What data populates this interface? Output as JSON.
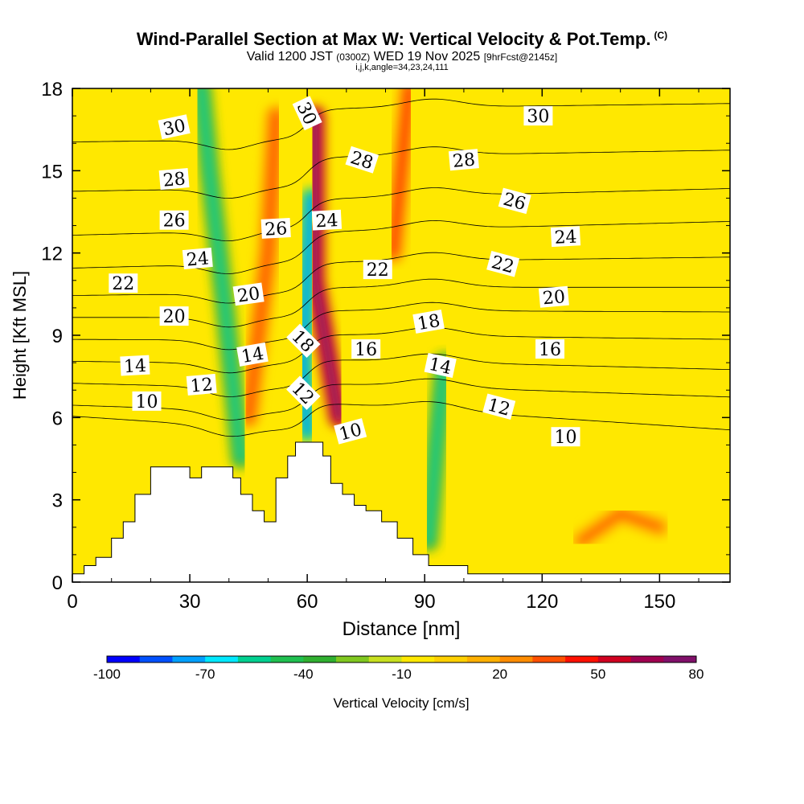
{
  "header": {
    "title": "Wind-Parallel Section at Max W: Vertical Velocity & Pot.Temp.",
    "copyright": "(C)",
    "valid_prefix": "Valid 1200 JST",
    "valid_zulu": "(0300Z)",
    "valid_date": "WED 19 Nov 2025",
    "forecast": "[9hrFcst@2145z]",
    "indices": "i,j,k,angle=34,23,24,111"
  },
  "chart_data": {
    "type": "heatmap",
    "xlabel": "Distance [nm]",
    "ylabel": "Height [Kft MSL]",
    "xlim": [
      0,
      168
    ],
    "ylim": [
      0,
      18
    ],
    "xticks": [
      0,
      30,
      60,
      90,
      120,
      150
    ],
    "yticks": [
      0,
      3,
      6,
      9,
      12,
      15,
      18
    ],
    "colorbar": {
      "label": "Vertical Velocity [cm/s]",
      "min": -100,
      "max": 80,
      "step": 10,
      "tick_values": [
        -100,
        -70,
        -40,
        -10,
        20,
        50,
        80
      ],
      "colors": [
        "#0000ff",
        "#0050ff",
        "#00a0ff",
        "#00e8ff",
        "#00d090",
        "#20c050",
        "#30b030",
        "#80c820",
        "#c8e020",
        "#ffe800",
        "#ffd000",
        "#ffb000",
        "#ff8c00",
        "#ff5000",
        "#ff1000",
        "#d00020",
        "#a00050",
        "#80106a"
      ]
    },
    "background_w_cm_s": 0,
    "terrain_profile": [
      {
        "x": 0,
        "z": 0.3
      },
      {
        "x": 3,
        "z": 0.6
      },
      {
        "x": 6,
        "z": 0.9
      },
      {
        "x": 10,
        "z": 1.6
      },
      {
        "x": 13,
        "z": 2.2
      },
      {
        "x": 16,
        "z": 3.2
      },
      {
        "x": 20,
        "z": 4.2
      },
      {
        "x": 29,
        "z": 4.2
      },
      {
        "x": 30,
        "z": 3.8
      },
      {
        "x": 33,
        "z": 4.2
      },
      {
        "x": 39,
        "z": 4.2
      },
      {
        "x": 41,
        "z": 3.8
      },
      {
        "x": 43,
        "z": 3.2
      },
      {
        "x": 46,
        "z": 2.6
      },
      {
        "x": 49,
        "z": 2.2
      },
      {
        "x": 52,
        "z": 3.8
      },
      {
        "x": 55,
        "z": 4.6
      },
      {
        "x": 57,
        "z": 5.1
      },
      {
        "x": 61,
        "z": 5.1
      },
      {
        "x": 64,
        "z": 4.6
      },
      {
        "x": 66,
        "z": 3.6
      },
      {
        "x": 69,
        "z": 3.2
      },
      {
        "x": 72,
        "z": 2.8
      },
      {
        "x": 75,
        "z": 2.6
      },
      {
        "x": 79,
        "z": 2.2
      },
      {
        "x": 83,
        "z": 1.6
      },
      {
        "x": 87,
        "z": 1.0
      },
      {
        "x": 91,
        "z": 0.6
      },
      {
        "x": 100,
        "z": 0.6
      },
      {
        "x": 101,
        "z": 0.3
      },
      {
        "x": 168,
        "z": 0.3
      }
    ],
    "w_features": [
      {
        "name": "main updraft",
        "x": [
          68,
          65,
          62,
          62,
          62
        ],
        "z": [
          6,
          8.5,
          11,
          14,
          17
        ],
        "w": 55
      },
      {
        "name": "main downdraft",
        "x": [
          60,
          59,
          60,
          61
        ],
        "z": [
          5.5,
          8,
          11,
          14
        ],
        "w": -60
      },
      {
        "name": "downdraft band",
        "x": [
          43,
          39,
          35,
          33
        ],
        "z": [
          4.5,
          10,
          15,
          18
        ],
        "w": -40
      },
      {
        "name": "updraft band",
        "x": [
          45,
          50,
          52
        ],
        "z": [
          6,
          12,
          17
        ],
        "w": 20
      },
      {
        "name": "upper updraft",
        "x": [
          82,
          84,
          86
        ],
        "z": [
          12,
          15,
          18
        ],
        "w": 25
      },
      {
        "name": "lower downdraft",
        "x": [
          91,
          93,
          95
        ],
        "z": [
          1.5,
          5,
          8
        ],
        "w": -40
      },
      {
        "name": "low-level updraft",
        "x": [
          130,
          140,
          150
        ],
        "z": [
          1.5,
          2.5,
          2
        ],
        "w": 15
      }
    ],
    "theta_contours": [
      {
        "label": "10",
        "z_left": 6.6,
        "z_right": 5.0
      },
      {
        "label": "12",
        "z_left": 7.0,
        "z_right": 6.2
      },
      {
        "label": "14",
        "z_left": 7.8,
        "z_right": 7.2
      },
      {
        "label": "16",
        "z_left": 8.6,
        "z_right": 8.3
      },
      {
        "label": "18",
        "z_left": 9.4,
        "z_right": 9.3
      },
      {
        "label": "20",
        "z_left": 10.2,
        "z_right": 10.2
      },
      {
        "label": "22",
        "z_left": 11.0,
        "z_right": 11.3
      },
      {
        "label": "24",
        "z_left": 12.0,
        "z_right": 12.6
      },
      {
        "label": "26",
        "z_left": 13.2,
        "z_right": 13.8
      },
      {
        "label": "28",
        "z_left": 14.8,
        "z_right": 15.2
      },
      {
        "label": "30",
        "z_left": 16.6,
        "z_right": 16.9
      }
    ],
    "theta_labels": [
      {
        "text": "30",
        "x": 26,
        "z": 16.6,
        "rot": -12
      },
      {
        "text": "28",
        "x": 26,
        "z": 14.7,
        "rot": -5
      },
      {
        "text": "26",
        "x": 26,
        "z": 13.2,
        "rot": 0
      },
      {
        "text": "24",
        "x": 32,
        "z": 11.8,
        "rot": -5
      },
      {
        "text": "22",
        "x": 13,
        "z": 10.9,
        "rot": 0
      },
      {
        "text": "20",
        "x": 26,
        "z": 9.7,
        "rot": 0
      },
      {
        "text": "14",
        "x": 16,
        "z": 7.9,
        "rot": -3
      },
      {
        "text": "10",
        "x": 19,
        "z": 6.6,
        "rot": 0
      },
      {
        "text": "12",
        "x": 33,
        "z": 7.2,
        "rot": -5
      },
      {
        "text": "20",
        "x": 45,
        "z": 10.5,
        "rot": -8
      },
      {
        "text": "14",
        "x": 46,
        "z": 8.3,
        "rot": -10
      },
      {
        "text": "26",
        "x": 52,
        "z": 12.9,
        "rot": -3
      },
      {
        "text": "30",
        "x": 60,
        "z": 17.1,
        "rot": 65
      },
      {
        "text": "24",
        "x": 65,
        "z": 13.2,
        "rot": -3
      },
      {
        "text": "18",
        "x": 59,
        "z": 8.8,
        "rot": 45
      },
      {
        "text": "12",
        "x": 59,
        "z": 6.9,
        "rot": 45
      },
      {
        "text": "16",
        "x": 75,
        "z": 8.5,
        "rot": 0
      },
      {
        "text": "10",
        "x": 71,
        "z": 5.5,
        "rot": -15
      },
      {
        "text": "22",
        "x": 78,
        "z": 11.4,
        "rot": 0
      },
      {
        "text": "28",
        "x": 74,
        "z": 15.4,
        "rot": 18
      },
      {
        "text": "18",
        "x": 91,
        "z": 9.5,
        "rot": -10
      },
      {
        "text": "14",
        "x": 94,
        "z": 7.9,
        "rot": 12
      },
      {
        "text": "28",
        "x": 100,
        "z": 15.4,
        "rot": -5
      },
      {
        "text": "26",
        "x": 113,
        "z": 13.9,
        "rot": 15
      },
      {
        "text": "22",
        "x": 110,
        "z": 11.6,
        "rot": 15
      },
      {
        "text": "12",
        "x": 109,
        "z": 6.4,
        "rot": 15
      },
      {
        "text": "16",
        "x": 122,
        "z": 8.5,
        "rot": 0
      },
      {
        "text": "20",
        "x": 123,
        "z": 10.4,
        "rot": -5
      },
      {
        "text": "24",
        "x": 126,
        "z": 12.6,
        "rot": -3
      },
      {
        "text": "30",
        "x": 119,
        "z": 17.0,
        "rot": 0
      },
      {
        "text": "10",
        "x": 126,
        "z": 5.3,
        "rot": 0
      }
    ]
  }
}
